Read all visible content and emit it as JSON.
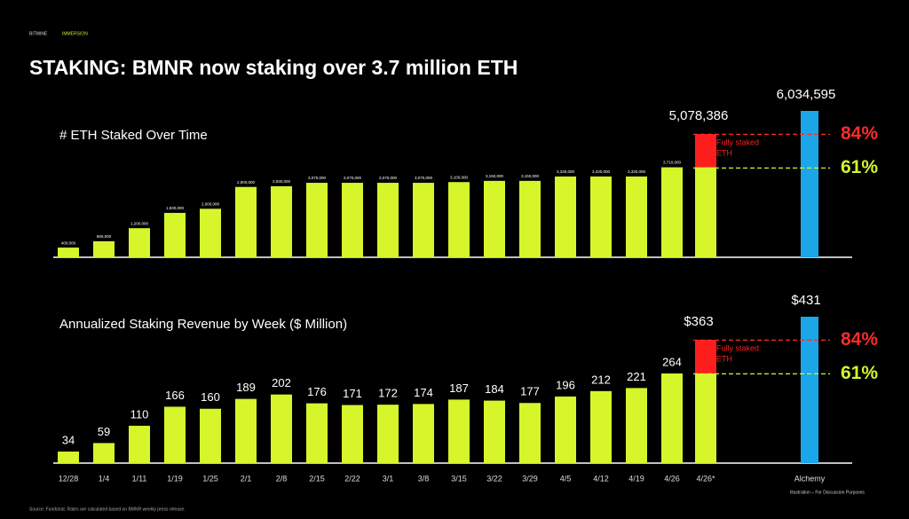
{
  "header": {
    "brand": "BITMINE",
    "brand_tag": "IMMERSION",
    "title": "STAKING: BMNR now staking over 3.7 million ETH"
  },
  "chart_data": [
    {
      "type": "bar",
      "title": "# ETH Staked Over Time",
      "color": "#d6f52b",
      "values": [
        400000,
        660000,
        1200000,
        1830000,
        2000000,
        2900000,
        2930000,
        3070000,
        3070000,
        3070000,
        3070000,
        3100000,
        3150000,
        3150000,
        3330000,
        3330000,
        3330000,
        3710000
      ],
      "value_labels": [
        "400,000",
        "660,000",
        "1,200,000",
        "1,830,000",
        "2,000,000",
        "2,900,000",
        "2,930,000",
        "3,070,000",
        "3,070,000",
        "3,070,000",
        "3,070,000",
        "3,100,000",
        "3,150,000",
        "3,150,000",
        "3,330,000",
        "3,330,000",
        "3,330,000",
        "3,710,000"
      ],
      "projected": {
        "value": 5078386,
        "label": "5,078,386",
        "color": "#ff1e1e",
        "note": [
          "Fully staked",
          "ETH"
        ]
      },
      "alchemy": {
        "value": 6034595,
        "label": "6,034,595",
        "color": "#1ba6ea"
      },
      "shares": [
        {
          "value": 84,
          "label": "84%",
          "color": "#ff2a2a"
        },
        {
          "value": 61,
          "label": "61%",
          "color": "#d6f52b"
        }
      ]
    },
    {
      "type": "bar",
      "title": "Annualized Staking Revenue by Week ($ Million)",
      "color": "#d6f52b",
      "categories": [
        "12/28",
        "1/4",
        "1/11",
        "1/19",
        "1/25",
        "2/1",
        "2/8",
        "2/15",
        "2/22",
        "3/1",
        "3/8",
        "3/15",
        "3/22",
        "3/29",
        "4/5",
        "4/12",
        "4/19",
        "4/26"
      ],
      "values": [
        34,
        59,
        110,
        166,
        160,
        189,
        202,
        176,
        171,
        172,
        174,
        187,
        184,
        177,
        196,
        212,
        221,
        264
      ],
      "projected": {
        "category": "4/26*",
        "value": 363,
        "label": "$363",
        "color": "#ff1e1e",
        "note": [
          "Fully staked",
          "ETH"
        ]
      },
      "alchemy": {
        "category": "Alchemy",
        "value": 431,
        "label": "$431",
        "color": "#1ba6ea"
      },
      "shares": [
        {
          "value": 84,
          "label": "84%",
          "color": "#ff2a2a"
        },
        {
          "value": 61,
          "label": "61%",
          "color": "#d6f52b"
        }
      ]
    }
  ],
  "footer": {
    "source": "Source: Fundstrat. Rates are calculated based on BMNR weekly press release.",
    "disclaimer": "Illustration – For Discussion Purposes"
  }
}
